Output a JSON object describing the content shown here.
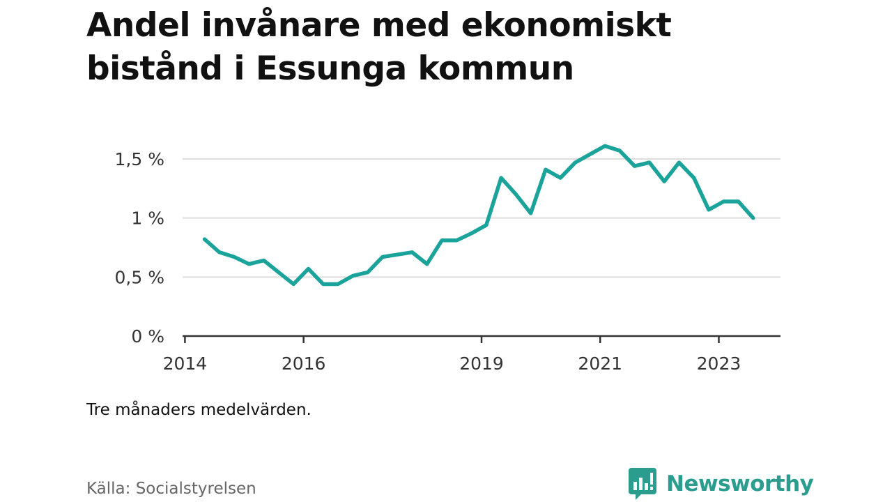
{
  "title": "Andel invånare med ekonomiskt bistånd i Essunga kommun",
  "note": "Tre månaders medelvärden.",
  "source": "Källa: Socialstyrelsen",
  "brand": {
    "name": "Newsworthy",
    "icon": "newsworthy-logo-icon",
    "color": "#2a9d8f"
  },
  "chart_data": {
    "type": "line",
    "title": "Andel invånare med ekonomiskt bistånd i Essunga kommun",
    "xlabel": "",
    "ylabel": "",
    "unit": "%",
    "line_color": "#1aa39a",
    "grid": true,
    "ylim": [
      0,
      1.5
    ],
    "y_ticks": [
      {
        "value": 0,
        "label": "0 %"
      },
      {
        "value": 0.5,
        "label": "0,5 %"
      },
      {
        "value": 1,
        "label": "1 %"
      },
      {
        "value": 1.5,
        "label": "1,5 %"
      }
    ],
    "x_ticks": [
      {
        "value": 2014,
        "label": "2014"
      },
      {
        "value": 2016,
        "label": "2016"
      },
      {
        "value": 2019,
        "label": "2019"
      },
      {
        "value": 2021,
        "label": "2021"
      },
      {
        "value": 2023,
        "label": "2023"
      }
    ],
    "xlim": [
      2013.96,
      2024.04
    ],
    "series": [
      {
        "x": [
          2014.33,
          2014.58,
          2014.83,
          2015.08,
          2015.33,
          2015.58,
          2015.83,
          2016.08,
          2016.33,
          2016.58,
          2016.83,
          2017.08,
          2017.33,
          2017.58,
          2017.83,
          2018.08,
          2018.33,
          2018.58,
          2018.83,
          2019.08,
          2019.33,
          2019.58,
          2019.83,
          2020.08,
          2020.33,
          2020.58,
          2020.83,
          2021.08,
          2021.33,
          2021.58,
          2021.83,
          2022.08,
          2022.33,
          2022.58,
          2022.83,
          2023.08,
          2023.33,
          2023.58
        ],
        "values": [
          0.82,
          0.71,
          0.67,
          0.61,
          0.64,
          0.54,
          0.44,
          0.57,
          0.44,
          0.44,
          0.51,
          0.54,
          0.67,
          0.69,
          0.71,
          0.61,
          0.81,
          0.81,
          0.87,
          0.94,
          1.34,
          1.2,
          1.04,
          1.41,
          1.34,
          1.47,
          1.54,
          1.61,
          1.57,
          1.44,
          1.47,
          1.31,
          1.47,
          1.34,
          1.07,
          1.14,
          1.14,
          1.0
        ]
      }
    ]
  }
}
